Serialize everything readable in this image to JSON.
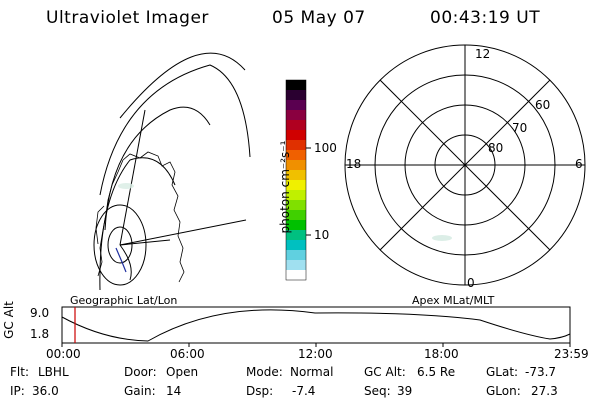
{
  "header": {
    "instrument": "Ultraviolet Imager",
    "date": "05 May 07",
    "time": "00:43:19 UT"
  },
  "colorbar": {
    "unit_label": "photon cm⁻²s⁻¹",
    "ticks": [
      "100",
      "10"
    ],
    "colors": [
      "#000000",
      "#2a0030",
      "#5a0050",
      "#8a0040",
      "#b00020",
      "#d00000",
      "#e03000",
      "#f06000",
      "#f09000",
      "#f0c000",
      "#f0f000",
      "#c0f000",
      "#80e000",
      "#40d000",
      "#00c000",
      "#00c080",
      "#00c0c0",
      "#60d0e0",
      "#a0e0f0",
      "#ffffff"
    ]
  },
  "left_panel": {
    "caption": "Geographic Lat/Lon"
  },
  "polar_plot": {
    "caption": "Apex MLat/MLT",
    "mlt_labels": [
      "12",
      "18",
      "6",
      "0"
    ],
    "lat_labels": [
      "60",
      "70",
      "80"
    ]
  },
  "timeline": {
    "y_axis_title": "GC Alt",
    "y_ticks": [
      "9.0",
      "1.8"
    ],
    "x_ticks": [
      "00:00",
      "06:00",
      "12:00",
      "18:00",
      "23:59"
    ],
    "marker_color": "#cc0000"
  },
  "status": {
    "row1": [
      {
        "label": "Flt:",
        "value": "LBHL"
      },
      {
        "label": "Door:",
        "value": "Open"
      },
      {
        "label": "Mode:",
        "value": "Normal"
      },
      {
        "label": "GC Alt:",
        "value": "6.5 Re"
      },
      {
        "label": "GLat:",
        "value": "-73.7"
      }
    ],
    "row2": [
      {
        "label": "IP:",
        "value": "36.0"
      },
      {
        "label": "Gain:",
        "value": "14"
      },
      {
        "label": "Dsp:",
        "value": "-7.4"
      },
      {
        "label": "Seq:",
        "value": "39"
      },
      {
        "label": "GLon:",
        "value": "27.3"
      }
    ]
  }
}
